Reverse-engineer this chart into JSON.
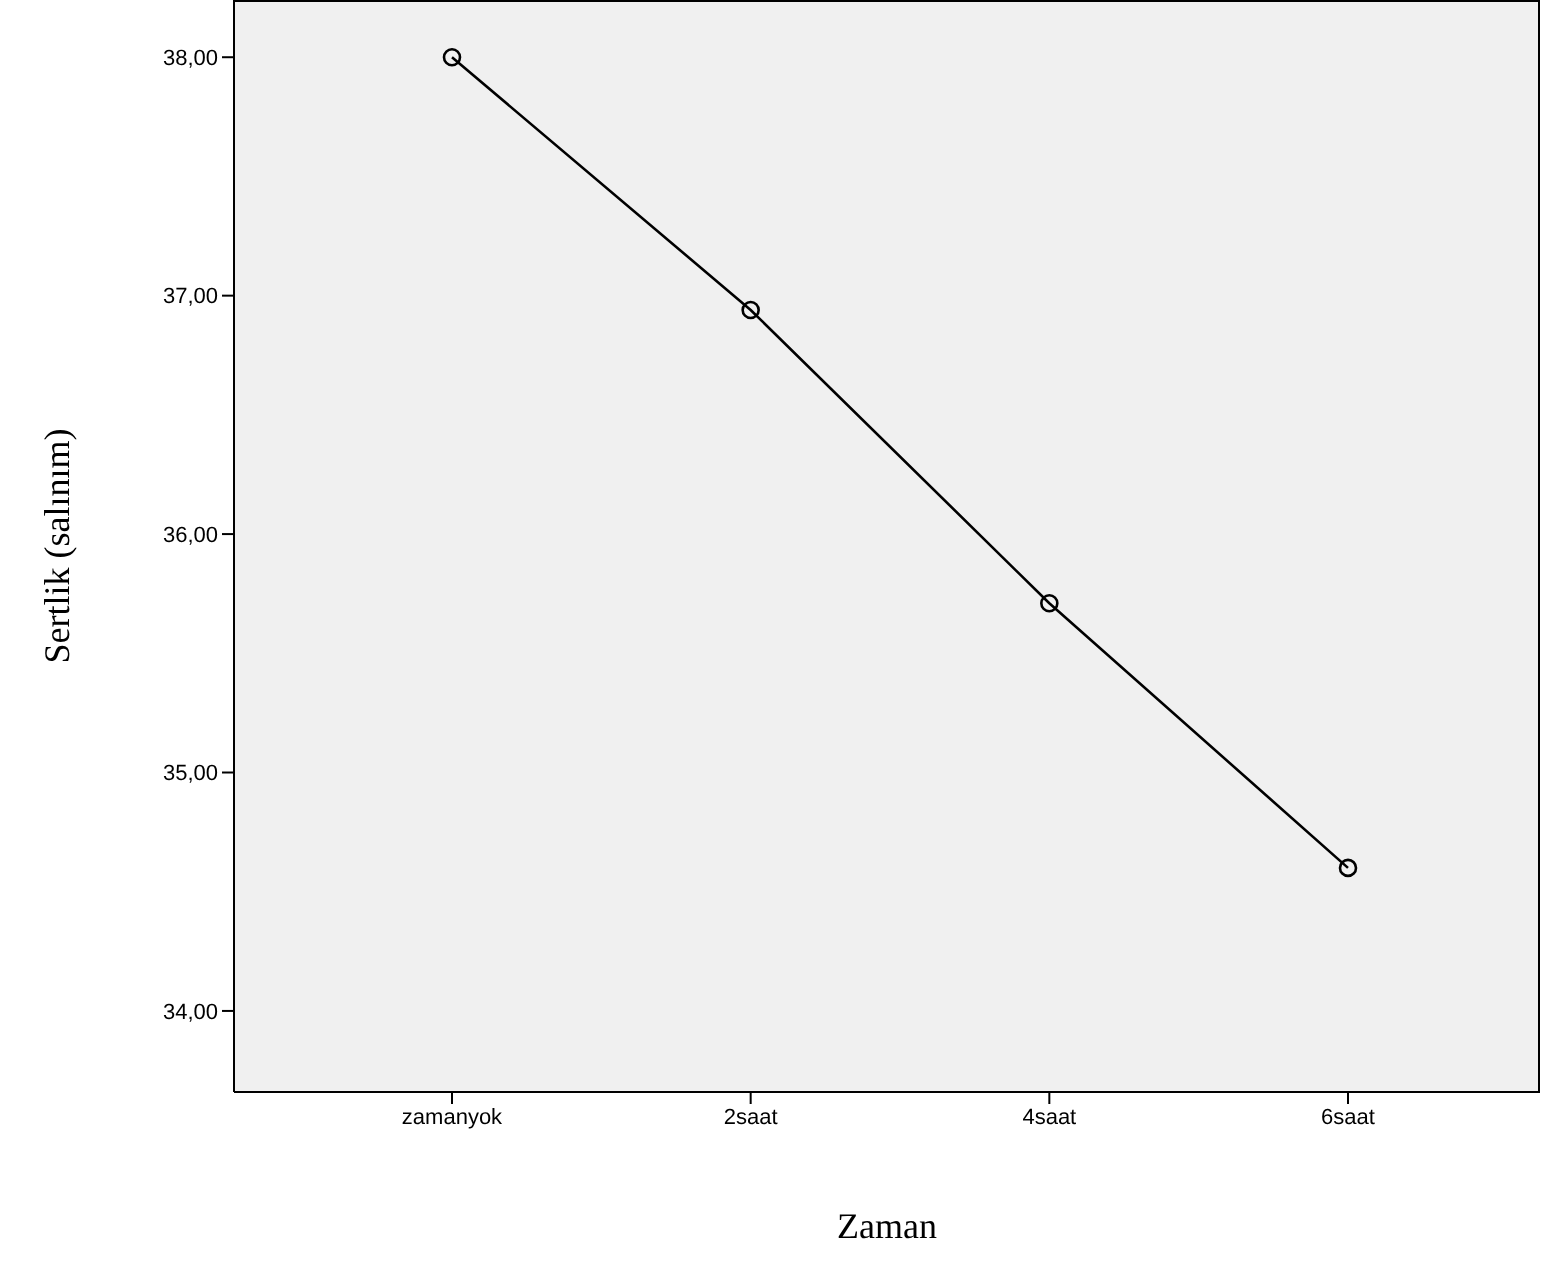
{
  "chart_data": {
    "type": "line",
    "xlabel": "Zaman",
    "ylabel": "Sertlik (salınım)",
    "categories": [
      "zamanyok",
      "2saat",
      "4saat",
      "6saat"
    ],
    "series": [
      {
        "color": "#000000",
        "values": [
          38.0,
          36.94,
          35.71,
          34.6
        ]
      }
    ],
    "ylim": [
      33.66,
      38.24
    ],
    "yticks": [
      {
        "value": 34,
        "label": "34,00"
      },
      {
        "value": 35,
        "label": "35,00"
      },
      {
        "value": 36,
        "label": "36,00"
      },
      {
        "value": 37,
        "label": "37,00"
      },
      {
        "value": 38,
        "label": "38,00"
      }
    ],
    "marker": "circle",
    "line_style": "solid",
    "grid": false,
    "legend": false
  }
}
